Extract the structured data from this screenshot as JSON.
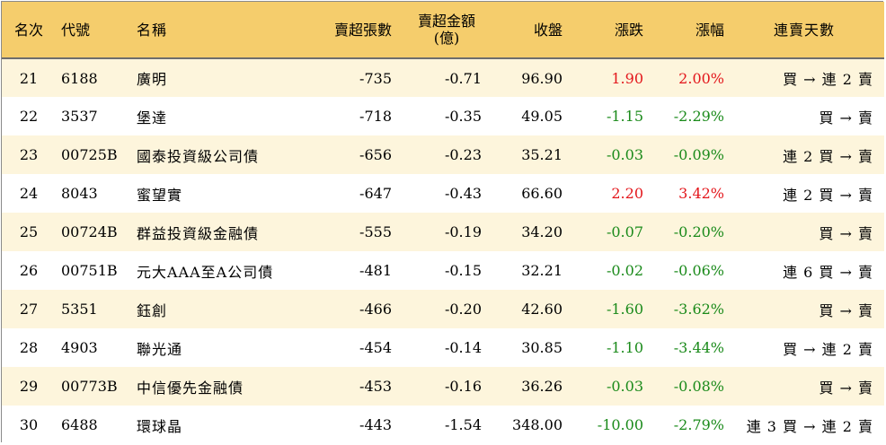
{
  "headers": {
    "rank": "名次",
    "code": "代號",
    "name": "名稱",
    "net_sell_lots": "賣超張數",
    "net_sell_amount_line1": "賣超金額",
    "net_sell_amount_line2": "(億)",
    "close": "收盤",
    "change": "漲跌",
    "change_pct": "漲幅",
    "streak": "連賣天數"
  },
  "colors": {
    "header_bg": "#f5cd6c",
    "stripe_bg": "#fdf5dc",
    "up": "#e3161b",
    "down": "#1a8a1a"
  },
  "rows": [
    {
      "rank": "21",
      "code": "6188",
      "name": "廣明",
      "lots": "-735",
      "amount": "-0.71",
      "close": "96.90",
      "change": "1.90",
      "pct": "2.00%",
      "dir": "up",
      "streak": "買 → 連 2 賣"
    },
    {
      "rank": "22",
      "code": "3537",
      "name": "堡達",
      "lots": "-718",
      "amount": "-0.35",
      "close": "49.05",
      "change": "-1.15",
      "pct": "-2.29%",
      "dir": "down",
      "streak": "買 → 賣"
    },
    {
      "rank": "23",
      "code": "00725B",
      "name": "國泰投資級公司債",
      "lots": "-656",
      "amount": "-0.23",
      "close": "35.21",
      "change": "-0.03",
      "pct": "-0.09%",
      "dir": "down",
      "streak": "連 2 買 → 賣"
    },
    {
      "rank": "24",
      "code": "8043",
      "name": "蜜望實",
      "lots": "-647",
      "amount": "-0.43",
      "close": "66.60",
      "change": "2.20",
      "pct": "3.42%",
      "dir": "up",
      "streak": "連 2 買 → 賣"
    },
    {
      "rank": "25",
      "code": "00724B",
      "name": "群益投資級金融債",
      "lots": "-555",
      "amount": "-0.19",
      "close": "34.20",
      "change": "-0.07",
      "pct": "-0.20%",
      "dir": "down",
      "streak": "買 → 賣"
    },
    {
      "rank": "26",
      "code": "00751B",
      "name": "元大AAA至A公司債",
      "lots": "-481",
      "amount": "-0.15",
      "close": "32.21",
      "change": "-0.02",
      "pct": "-0.06%",
      "dir": "down",
      "streak": "連 6 買 → 賣"
    },
    {
      "rank": "27",
      "code": "5351",
      "name": "鈺創",
      "lots": "-466",
      "amount": "-0.20",
      "close": "42.60",
      "change": "-1.60",
      "pct": "-3.62%",
      "dir": "down",
      "streak": "買 → 賣"
    },
    {
      "rank": "28",
      "code": "4903",
      "name": "聯光通",
      "lots": "-454",
      "amount": "-0.14",
      "close": "30.85",
      "change": "-1.10",
      "pct": "-3.44%",
      "dir": "down",
      "streak": "買 → 連 2 賣"
    },
    {
      "rank": "29",
      "code": "00773B",
      "name": "中信優先金融債",
      "lots": "-453",
      "amount": "-0.16",
      "close": "36.26",
      "change": "-0.03",
      "pct": "-0.08%",
      "dir": "down",
      "streak": "買 → 賣"
    },
    {
      "rank": "30",
      "code": "6488",
      "name": "環球晶",
      "lots": "-443",
      "amount": "-1.54",
      "close": "348.00",
      "change": "-10.00",
      "pct": "-2.79%",
      "dir": "down",
      "streak": "連 3 買 → 連 2 賣"
    }
  ]
}
